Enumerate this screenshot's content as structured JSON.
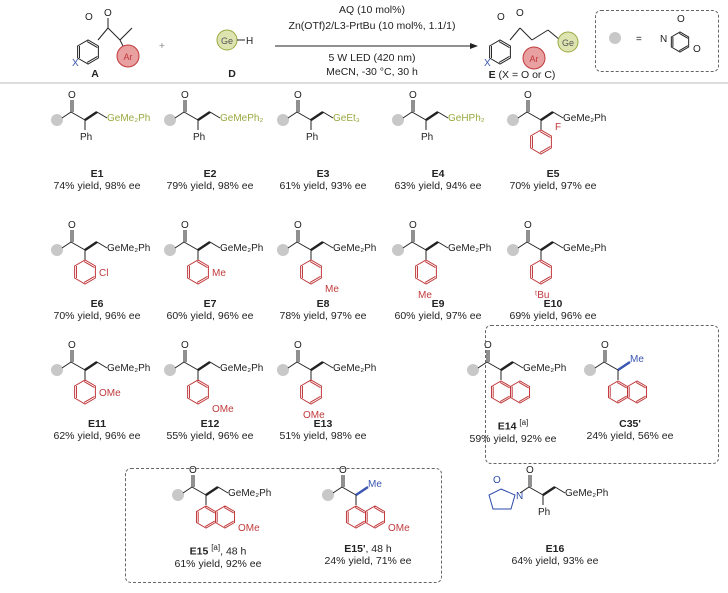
{
  "colors": {
    "aryl": "#c0393b",
    "ge": "#9aa840",
    "x": "#3a56b0",
    "dot": "#c8c8c8",
    "me_blue": "#3a56b0",
    "lactam": "#2a4aa8"
  },
  "header": {
    "reactant_a": {
      "label": "A",
      "x_atom": "X",
      "aryl": "Ar"
    },
    "plus": "+",
    "reactant_d": {
      "label": "D",
      "ge": "Ge",
      "h": "H"
    },
    "conditions": [
      "AQ (10 mol%)",
      "Zn(OTf)2/L3-PrtBu (10 mol%, 1.1/1)",
      "5 W LED (420 nm)",
      "MeCN, -30 °C, 30 h"
    ],
    "product": {
      "label": "E",
      "note": "(X = O or C)",
      "x_atom": "X",
      "aryl": "Ar",
      "ge": "Ge"
    },
    "legend": {
      "equals": "=",
      "atoms": [
        "N",
        "O",
        "O"
      ]
    }
  },
  "compounds": [
    {
      "id": "E1",
      "sup": "",
      "extra": "",
      "yield": "74% yield, 98% ee",
      "ge": "GeMe2Ph",
      "aryl": "Ph",
      "sub": "",
      "ge_colored": true
    },
    {
      "id": "E2",
      "sup": "",
      "extra": "",
      "yield": "79% yield, 98% ee",
      "ge": "GeMePh2",
      "aryl": "Ph",
      "sub": "",
      "ge_colored": true
    },
    {
      "id": "E3",
      "sup": "",
      "extra": "",
      "yield": "61% yield, 93% ee",
      "ge": "GeEt3",
      "aryl": "Ph",
      "sub": "",
      "ge_colored": true
    },
    {
      "id": "E4",
      "sup": "",
      "extra": "",
      "yield": "63% yield, 94% ee",
      "ge": "GeHPh2",
      "aryl": "Ph",
      "sub": "",
      "ge_colored": true
    },
    {
      "id": "E5",
      "sup": "",
      "extra": "",
      "yield": "70% yield, 97% ee",
      "ge": "GeMe2Ph",
      "aryl": "ring",
      "sub": "F"
    },
    {
      "id": "E6",
      "sup": "",
      "extra": "",
      "yield": "70% yield, 96% ee",
      "ge": "GeMe2Ph",
      "aryl": "ring",
      "sub": "Cl"
    },
    {
      "id": "E7",
      "sup": "",
      "extra": "",
      "yield": "60% yield, 96% ee",
      "ge": "GeMe2Ph",
      "aryl": "ring",
      "sub": "Me"
    },
    {
      "id": "E8",
      "sup": "",
      "extra": "",
      "yield": "78% yield, 97% ee",
      "ge": "GeMe2Ph",
      "aryl": "ring",
      "sub": "Me"
    },
    {
      "id": "E9",
      "sup": "",
      "extra": "",
      "yield": "60% yield, 97% ee",
      "ge": "GeMe2Ph",
      "aryl": "ring",
      "sub": "Me"
    },
    {
      "id": "E10",
      "sup": "",
      "extra": "",
      "yield": "69% yield, 96% ee",
      "ge": "GeMe2Ph",
      "aryl": "ring",
      "sub": "tBu"
    },
    {
      "id": "E11",
      "sup": "",
      "extra": "",
      "yield": "62% yield, 96% ee",
      "ge": "GeMe2Ph",
      "aryl": "ring",
      "sub": "OMe"
    },
    {
      "id": "E12",
      "sup": "",
      "extra": "",
      "yield": "55% yield, 96% ee",
      "ge": "GeMe2Ph",
      "aryl": "ring",
      "sub": "OMe"
    },
    {
      "id": "E13",
      "sup": "",
      "extra": "",
      "yield": "51% yield, 98% ee",
      "ge": "GeMe2Ph",
      "aryl": "ring",
      "sub": "OMe"
    },
    {
      "id": "E14",
      "sup": "[a]",
      "extra": "",
      "yield": "59% yield, 92% ee",
      "ge": "GeMe2Ph",
      "aryl": "naph",
      "sub": ""
    },
    {
      "id": "C35'",
      "sup": "",
      "extra": "",
      "yield": "24% yield, 56% ee",
      "ge": "Me",
      "aryl": "naph",
      "sub": ""
    },
    {
      "id": "E15",
      "sup": "[a]",
      "extra": ", 48 h",
      "yield": "61% yield, 92% ee",
      "ge": "GeMe2Ph",
      "aryl": "naph",
      "sub": "OMe"
    },
    {
      "id": "E15'",
      "sup": "",
      "extra": ", 48 h",
      "yield": "24% yield, 71% ee",
      "ge": "Me",
      "aryl": "naph",
      "sub": "OMe"
    },
    {
      "id": "E16",
      "sup": "",
      "extra": "",
      "yield": "64% yield, 93% ee",
      "ge": "GeMe2Ph",
      "aryl": "Ph",
      "sub": "",
      "lactam": true
    }
  ]
}
